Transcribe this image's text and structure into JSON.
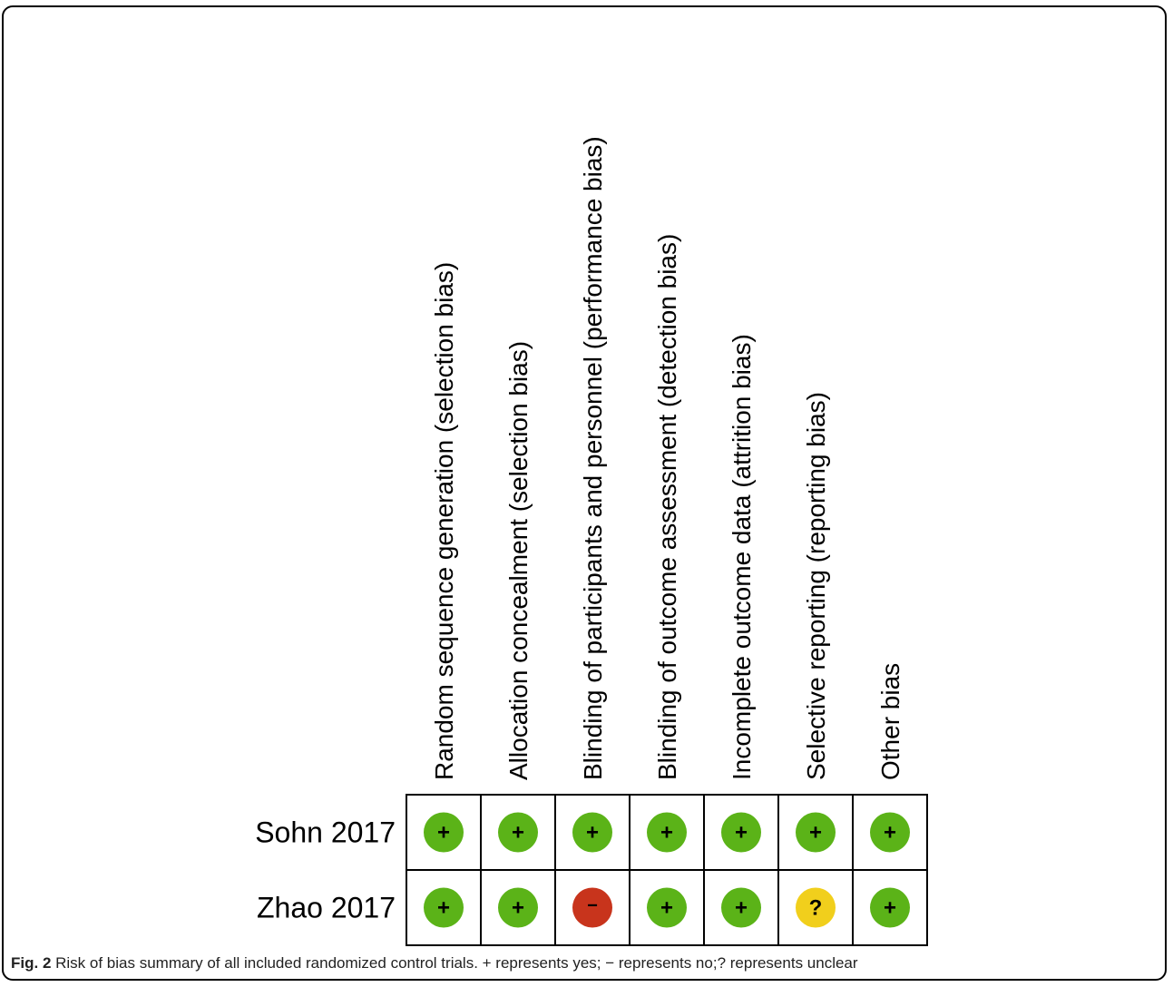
{
  "chart_data": {
    "type": "table",
    "columns": [
      "Random sequence generation (selection bias)",
      "Allocation concealment (selection bias)",
      "Blinding of participants and personnel (performance bias)",
      "Blinding of outcome assessment (detection bias)",
      "Incomplete outcome data (attrition bias)",
      "Selective reporting (reporting bias)",
      "Other bias"
    ],
    "rows": [
      {
        "study": "Sohn 2017",
        "judgements": [
          "+",
          "+",
          "+",
          "+",
          "+",
          "+",
          "+"
        ]
      },
      {
        "study": "Zhao 2017",
        "judgements": [
          "+",
          "+",
          "−",
          "+",
          "+",
          "?",
          "+"
        ]
      }
    ],
    "legend": {
      "+": {
        "meaning": "yes",
        "color": "#5bb318"
      },
      "−": {
        "meaning": "no",
        "color": "#c8341c"
      },
      "?": {
        "meaning": "unclear",
        "color": "#f1cf1c"
      }
    }
  },
  "caption": {
    "label": "Fig. 2",
    "text": " Risk of bias summary of all included randomized control trials. + represents yes; − represents no;? represents unclear"
  }
}
